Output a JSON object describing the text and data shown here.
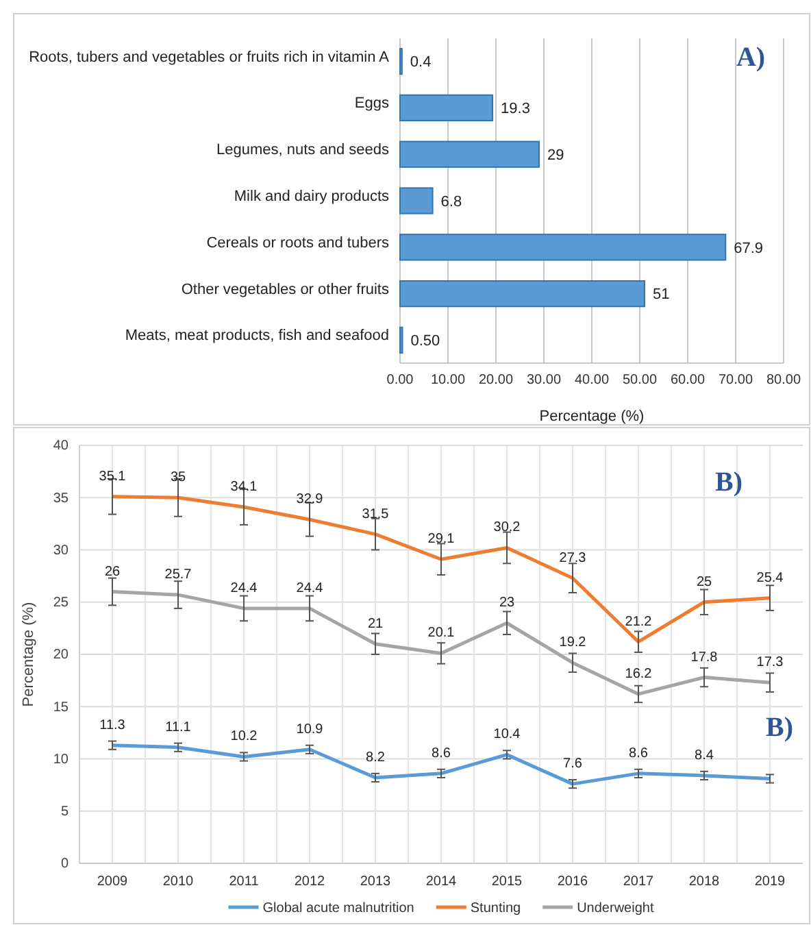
{
  "chart_data": [
    {
      "type": "bar",
      "orientation": "horizontal",
      "categories": [
        "Roots, tubers and vegetables or fruits rich in vitamin A",
        "Eggs",
        "Legumes, nuts and seeds",
        "Milk and dairy products",
        "Cereals or roots and tubers",
        "Other vegetables or other fruits",
        "Meats, meat products, fish and seafood"
      ],
      "values": [
        0.4,
        19.3,
        29,
        6.8,
        67.9,
        51,
        0.5
      ],
      "value_labels": [
        "0.4",
        "19.3",
        "29",
        "6.8",
        "67.9",
        "51",
        "0.50"
      ],
      "color": "#5b9bd5",
      "xlabel": "Percentage (%)",
      "xlim": [
        0,
        80
      ],
      "xticks": [
        {
          "value": 0,
          "label": "0.00"
        },
        {
          "value": 10,
          "label": "10.00"
        },
        {
          "value": 20,
          "label": "20.00"
        },
        {
          "value": 30,
          "label": "30.00"
        },
        {
          "value": 40,
          "label": "40.00"
        },
        {
          "value": 50,
          "label": "50.00"
        },
        {
          "value": 60,
          "label": "60.00"
        },
        {
          "value": 70,
          "label": "70.00"
        },
        {
          "value": 80,
          "label": "80.00"
        }
      ],
      "grid": "x",
      "annotations": [
        "A)"
      ]
    },
    {
      "type": "line",
      "categories": [
        "2009",
        "2010",
        "2011",
        "2012",
        "2013",
        "2014",
        "2015",
        "2016",
        "2017",
        "2018",
        "2019"
      ],
      "ylabel": "Percentage (%)",
      "ylim": [
        0,
        40
      ],
      "yticks": [
        0,
        5,
        10,
        15,
        20,
        25,
        30,
        35,
        40
      ],
      "grid": true,
      "legend": "bottom",
      "marker": "none",
      "line_style": "solid",
      "series": [
        {
          "name": "Global acute malnutrition",
          "color": "#5b9bd5",
          "values": [
            11.3,
            11.1,
            10.2,
            10.9,
            8.2,
            8.6,
            10.4,
            7.6,
            8.6,
            8.4,
            8.1
          ],
          "value_labels": [
            "11.3",
            "11.1",
            "10.2",
            "10.9",
            "8.2",
            "8.6",
            "10.4",
            "7.6",
            "8.6",
            "8.4",
            null
          ],
          "errors": [
            0.4,
            0.4,
            0.4,
            0.4,
            0.4,
            0.4,
            0.4,
            0.4,
            0.4,
            0.4,
            0.4
          ]
        },
        {
          "name": "Stunting",
          "color": "#ed7d31",
          "values": [
            35.1,
            35,
            34.1,
            32.9,
            31.5,
            29.1,
            30.2,
            27.3,
            21.2,
            25,
            25.4
          ],
          "value_labels": [
            "35.1",
            "35",
            "34.1",
            "32.9",
            "31.5",
            "29.1",
            "30.2",
            "27.3",
            "21.2",
            "25",
            "25.4"
          ],
          "errors": [
            1.7,
            1.8,
            1.7,
            1.6,
            1.5,
            1.5,
            1.5,
            1.4,
            1.0,
            1.2,
            1.2
          ]
        },
        {
          "name": "Underweight",
          "color": "#a5a5a5",
          "values": [
            26,
            25.7,
            24.4,
            24.4,
            21,
            20.1,
            23,
            19.2,
            16.2,
            17.8,
            17.3
          ],
          "value_labels": [
            "26",
            "25.7",
            "24.4",
            "24.4",
            "21",
            "20.1",
            "23",
            "19.2",
            "16.2",
            "17.8",
            "17.3"
          ],
          "errors": [
            1.3,
            1.3,
            1.2,
            1.2,
            1.0,
            1.0,
            1.1,
            0.9,
            0.8,
            0.9,
            0.9
          ]
        }
      ],
      "annotations": [
        "B)",
        "B)"
      ]
    }
  ]
}
